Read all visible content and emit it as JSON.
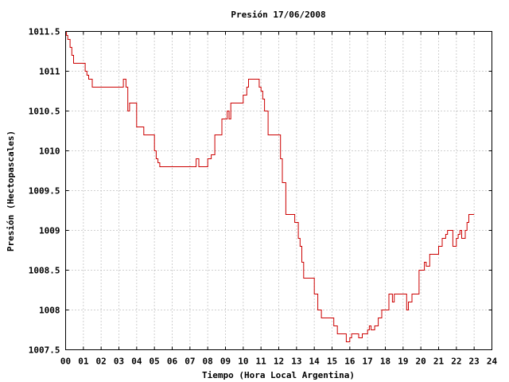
{
  "chart_data": {
    "type": "line",
    "title": "Presión 17/06/2008",
    "xlabel": "Tiempo (Hora Local Argentina)",
    "ylabel": "Presión (Hectopascales)",
    "xlim": [
      0,
      24
    ],
    "ylim": [
      1007.5,
      1011.5
    ],
    "grid": true,
    "xticks": [
      "00",
      "01",
      "02",
      "03",
      "04",
      "05",
      "06",
      "07",
      "08",
      "09",
      "10",
      "11",
      "12",
      "13",
      "14",
      "15",
      "16",
      "17",
      "18",
      "19",
      "20",
      "21",
      "22",
      "23",
      "24"
    ],
    "yticks": [
      {
        "value": 1007.5,
        "label": "1007.5"
      },
      {
        "value": 1008,
        "label": "1008"
      },
      {
        "value": 1008.5,
        "label": "1008.5"
      },
      {
        "value": 1009,
        "label": "1009"
      },
      {
        "value": 1009.5,
        "label": "1009.5"
      },
      {
        "value": 1010,
        "label": "1010"
      },
      {
        "value": 1010.5,
        "label": "1010.5"
      },
      {
        "value": 1011,
        "label": "1011"
      },
      {
        "value": 1011.5,
        "label": "1011.5"
      }
    ],
    "series": [
      {
        "color": "#cc0000",
        "step": true,
        "x": [
          0.0,
          0.05,
          0.12,
          0.25,
          0.35,
          0.45,
          1.1,
          1.2,
          1.3,
          1.5,
          2.5,
          3.25,
          3.4,
          3.5,
          3.6,
          3.65,
          4.0,
          4.1,
          4.4,
          5.0,
          5.1,
          5.2,
          5.3,
          7.25,
          7.35,
          7.5,
          8.0,
          8.2,
          8.4,
          8.8,
          9.1,
          9.2,
          9.3,
          10.0,
          10.2,
          10.3,
          10.4,
          10.5,
          10.9,
          11.0,
          11.1,
          11.2,
          11.4,
          12.0,
          12.1,
          12.2,
          12.4,
          12.9,
          13.1,
          13.2,
          13.3,
          13.4,
          13.5,
          14.0,
          14.2,
          14.4,
          15.1,
          15.3,
          15.8,
          15.9,
          16.0,
          16.1,
          16.5,
          16.7,
          17.0,
          17.1,
          17.2,
          17.4,
          17.6,
          17.8,
          18.2,
          18.4,
          18.5,
          18.8,
          19.2,
          19.3,
          19.5,
          19.9,
          20.1,
          20.2,
          20.3,
          20.5,
          20.8,
          21.0,
          21.2,
          21.4,
          21.5,
          21.8,
          21.9,
          22.0,
          22.1,
          22.2,
          22.3,
          22.5,
          22.6,
          22.7,
          22.9,
          23.0
        ],
        "y": [
          1011.5,
          1011.45,
          1011.4,
          1011.3,
          1011.2,
          1011.1,
          1011.0,
          1010.95,
          1010.9,
          1010.8,
          1010.8,
          1010.9,
          1010.8,
          1010.5,
          1010.6,
          1010.6,
          1010.3,
          1010.3,
          1010.2,
          1010.0,
          1009.9,
          1009.85,
          1009.8,
          1009.8,
          1009.9,
          1009.8,
          1009.9,
          1009.95,
          1010.2,
          1010.4,
          1010.5,
          1010.4,
          1010.6,
          1010.7,
          1010.8,
          1010.9,
          1010.9,
          1010.9,
          1010.8,
          1010.75,
          1010.65,
          1010.5,
          1010.2,
          1010.2,
          1009.9,
          1009.6,
          1009.2,
          1009.1,
          1008.9,
          1008.8,
          1008.6,
          1008.4,
          1008.4,
          1008.2,
          1008.0,
          1007.9,
          1007.8,
          1007.7,
          1007.6,
          1007.6,
          1007.65,
          1007.7,
          1007.65,
          1007.7,
          1007.75,
          1007.8,
          1007.75,
          1007.8,
          1007.9,
          1008.0,
          1008.2,
          1008.1,
          1008.2,
          1008.2,
          1008.0,
          1008.1,
          1008.2,
          1008.5,
          1008.5,
          1008.6,
          1008.55,
          1008.7,
          1008.7,
          1008.8,
          1008.9,
          1008.95,
          1009.0,
          1008.8,
          1008.8,
          1008.9,
          1008.95,
          1009.0,
          1008.9,
          1009.0,
          1009.1,
          1009.2,
          1009.2,
          1009.2
        ]
      }
    ]
  }
}
